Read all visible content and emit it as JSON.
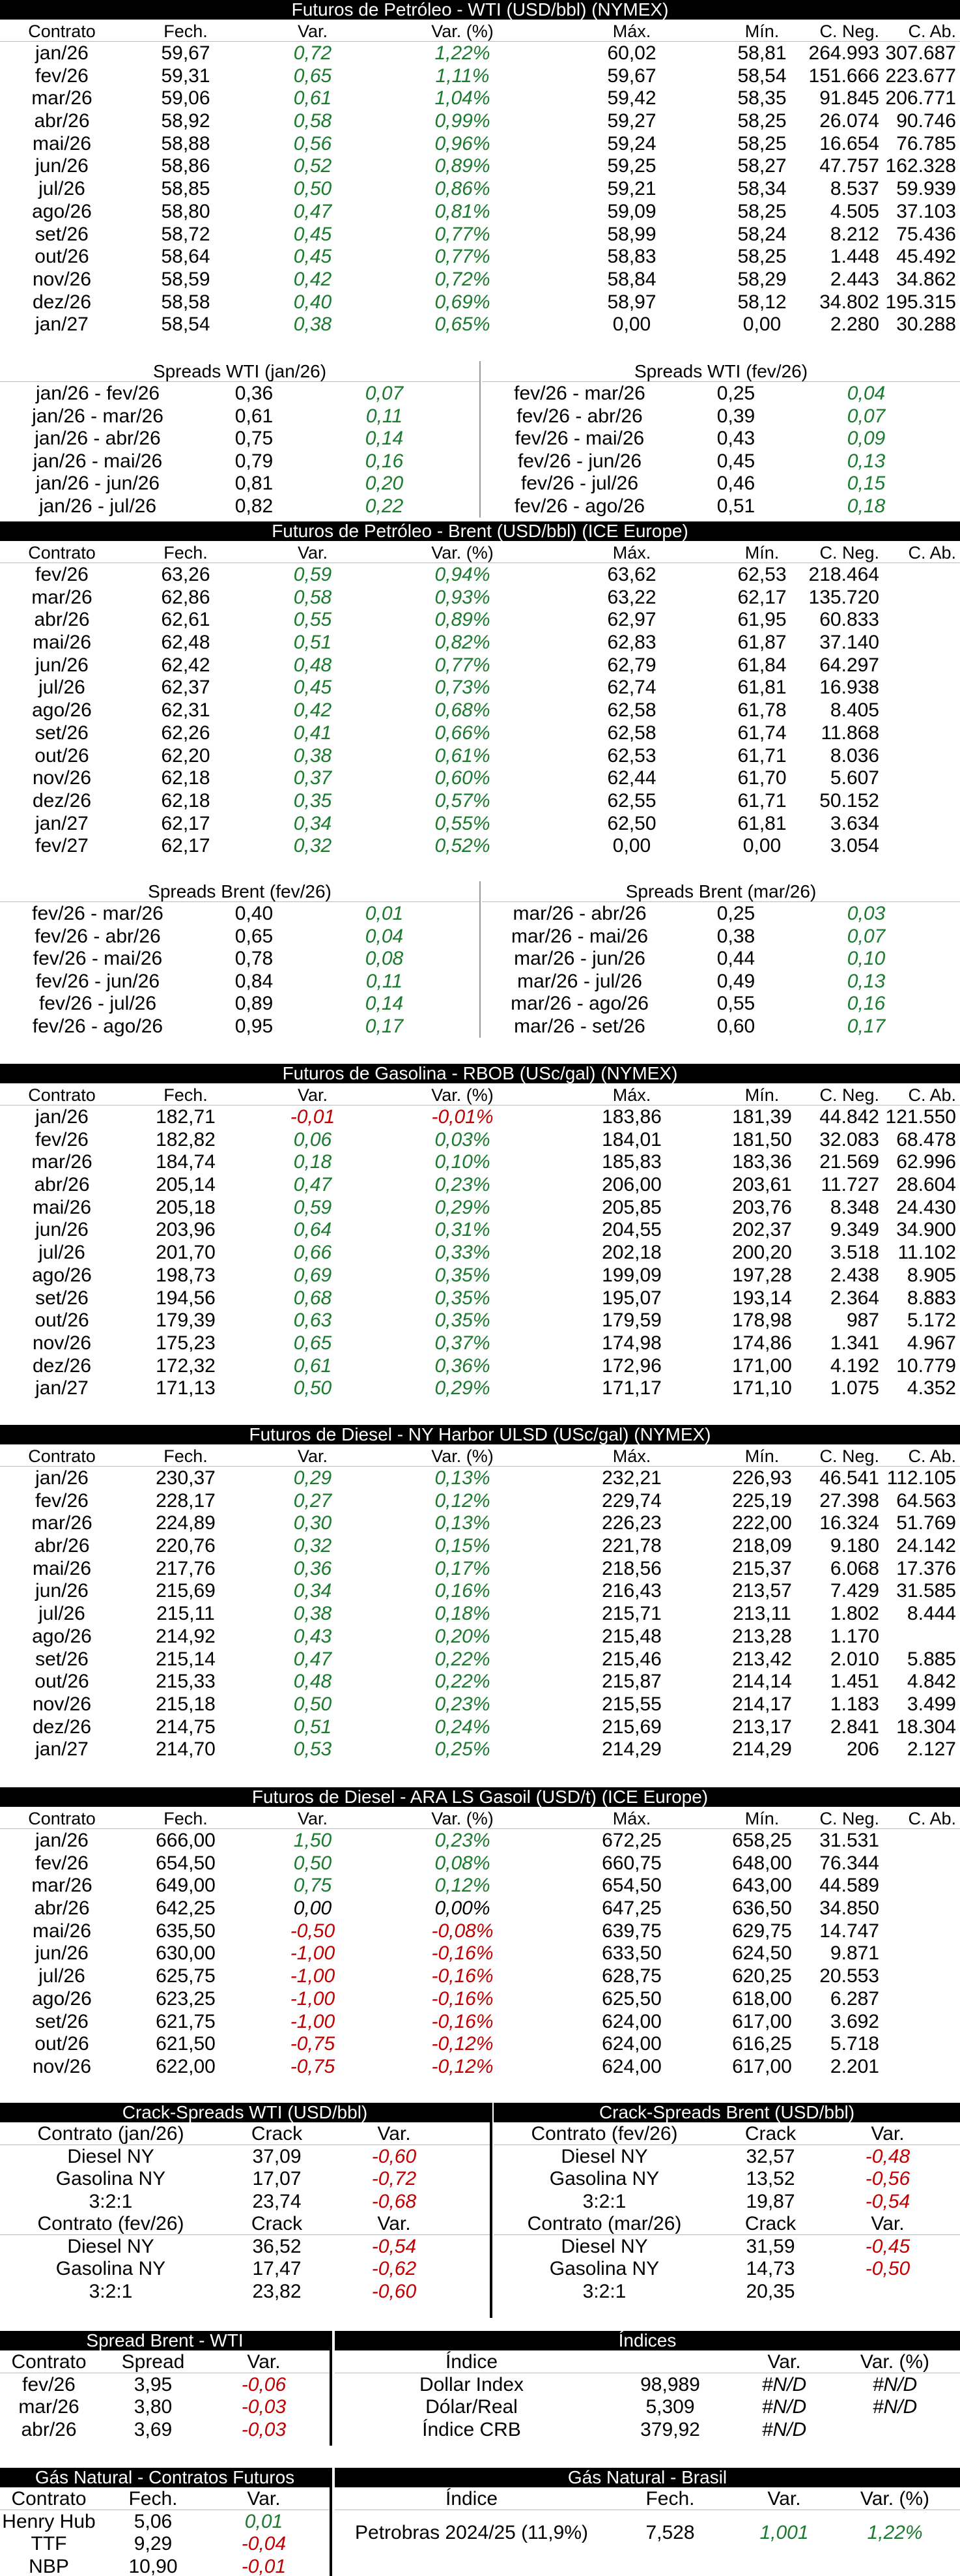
{
  "futures_headers": [
    "Contrato",
    "Fech.",
    "Var.",
    "Var. (%)",
    "Máx.",
    "Mín.",
    "C. Neg.",
    "C. Ab."
  ],
  "wti": {
    "title": "Futuros de Petróleo - WTI (USD/bbl) (NYMEX)",
    "rows": [
      [
        "jan/26",
        "59,67",
        "0,72",
        "1,22%",
        "60,02",
        "58,81",
        "264.993",
        "307.687"
      ],
      [
        "fev/26",
        "59,31",
        "0,65",
        "1,11%",
        "59,67",
        "58,54",
        "151.666",
        "223.677"
      ],
      [
        "mar/26",
        "59,06",
        "0,61",
        "1,04%",
        "59,42",
        "58,35",
        "91.845",
        "206.771"
      ],
      [
        "abr/26",
        "58,92",
        "0,58",
        "0,99%",
        "59,27",
        "58,25",
        "26.074",
        "90.746"
      ],
      [
        "mai/26",
        "58,88",
        "0,56",
        "0,96%",
        "59,24",
        "58,25",
        "16.654",
        "76.785"
      ],
      [
        "jun/26",
        "58,86",
        "0,52",
        "0,89%",
        "59,25",
        "58,27",
        "47.757",
        "162.328"
      ],
      [
        "jul/26",
        "58,85",
        "0,50",
        "0,86%",
        "59,21",
        "58,34",
        "8.537",
        "59.939"
      ],
      [
        "ago/26",
        "58,80",
        "0,47",
        "0,81%",
        "59,09",
        "58,25",
        "4.505",
        "37.103"
      ],
      [
        "set/26",
        "58,72",
        "0,45",
        "0,77%",
        "58,99",
        "58,24",
        "8.212",
        "75.436"
      ],
      [
        "out/26",
        "58,64",
        "0,45",
        "0,77%",
        "58,83",
        "58,25",
        "1.448",
        "45.492"
      ],
      [
        "nov/26",
        "58,59",
        "0,42",
        "0,72%",
        "58,84",
        "58,29",
        "2.443",
        "34.862"
      ],
      [
        "dez/26",
        "58,58",
        "0,40",
        "0,69%",
        "58,97",
        "58,12",
        "34.802",
        "195.315"
      ],
      [
        "jan/27",
        "58,54",
        "0,38",
        "0,65%",
        "0,00",
        "0,00",
        "2.280",
        "30.288"
      ]
    ],
    "spread_left_title": "Spreads WTI (jan/26)",
    "spread_right_title": "Spreads WTI (fev/26)",
    "spread_left": [
      [
        "jan/26 - fev/26",
        "0,36",
        "0,07"
      ],
      [
        "jan/26 - mar/26",
        "0,61",
        "0,11"
      ],
      [
        "jan/26 - abr/26",
        "0,75",
        "0,14"
      ],
      [
        "jan/26 - mai/26",
        "0,79",
        "0,16"
      ],
      [
        "jan/26 - jun/26",
        "0,81",
        "0,20"
      ],
      [
        "jan/26 - jul/26",
        "0,82",
        "0,22"
      ]
    ],
    "spread_right": [
      [
        "fev/26 - mar/26",
        "0,25",
        "0,04"
      ],
      [
        "fev/26 - abr/26",
        "0,39",
        "0,07"
      ],
      [
        "fev/26 - mai/26",
        "0,43",
        "0,09"
      ],
      [
        "fev/26 - jun/26",
        "0,45",
        "0,13"
      ],
      [
        "fev/26 - jul/26",
        "0,46",
        "0,15"
      ],
      [
        "fev/26 - ago/26",
        "0,51",
        "0,18"
      ]
    ]
  },
  "brent": {
    "title": "Futuros de Petróleo - Brent (USD/bbl) (ICE Europe)",
    "rows": [
      [
        "fev/26",
        "63,26",
        "0,59",
        "0,94%",
        "63,62",
        "62,53",
        "218.464",
        ""
      ],
      [
        "mar/26",
        "62,86",
        "0,58",
        "0,93%",
        "63,22",
        "62,17",
        "135.720",
        ""
      ],
      [
        "abr/26",
        "62,61",
        "0,55",
        "0,89%",
        "62,97",
        "61,95",
        "60.833",
        ""
      ],
      [
        "mai/26",
        "62,48",
        "0,51",
        "0,82%",
        "62,83",
        "61,87",
        "37.140",
        ""
      ],
      [
        "jun/26",
        "62,42",
        "0,48",
        "0,77%",
        "62,79",
        "61,84",
        "64.297",
        ""
      ],
      [
        "jul/26",
        "62,37",
        "0,45",
        "0,73%",
        "62,74",
        "61,81",
        "16.938",
        ""
      ],
      [
        "ago/26",
        "62,31",
        "0,42",
        "0,68%",
        "62,58",
        "61,78",
        "8.405",
        ""
      ],
      [
        "set/26",
        "62,26",
        "0,41",
        "0,66%",
        "62,58",
        "61,74",
        "11.868",
        ""
      ],
      [
        "out/26",
        "62,20",
        "0,38",
        "0,61%",
        "62,53",
        "61,71",
        "8.036",
        ""
      ],
      [
        "nov/26",
        "62,18",
        "0,37",
        "0,60%",
        "62,44",
        "61,70",
        "5.607",
        ""
      ],
      [
        "dez/26",
        "62,18",
        "0,35",
        "0,57%",
        "62,55",
        "61,71",
        "50.152",
        ""
      ],
      [
        "jan/27",
        "62,17",
        "0,34",
        "0,55%",
        "62,50",
        "61,81",
        "3.634",
        ""
      ],
      [
        "fev/27",
        "62,17",
        "0,32",
        "0,52%",
        "0,00",
        "0,00",
        "3.054",
        ""
      ]
    ],
    "spread_left_title": "Spreads Brent (fev/26)",
    "spread_right_title": "Spreads Brent (mar/26)",
    "spread_left": [
      [
        "fev/26 - mar/26",
        "0,40",
        "0,01"
      ],
      [
        "fev/26 - abr/26",
        "0,65",
        "0,04"
      ],
      [
        "fev/26 - mai/26",
        "0,78",
        "0,08"
      ],
      [
        "fev/26 - jun/26",
        "0,84",
        "0,11"
      ],
      [
        "fev/26 - jul/26",
        "0,89",
        "0,14"
      ],
      [
        "fev/26 - ago/26",
        "0,95",
        "0,17"
      ]
    ],
    "spread_right": [
      [
        "mar/26 - abr/26",
        "0,25",
        "0,03"
      ],
      [
        "mar/26 - mai/26",
        "0,38",
        "0,07"
      ],
      [
        "mar/26 - jun/26",
        "0,44",
        "0,10"
      ],
      [
        "mar/26 - jul/26",
        "0,49",
        "0,13"
      ],
      [
        "mar/26 - ago/26",
        "0,55",
        "0,16"
      ],
      [
        "mar/26 - set/26",
        "0,60",
        "0,17"
      ]
    ]
  },
  "rbob": {
    "title": "Futuros de Gasolina - RBOB (USc/gal) (NYMEX)",
    "rows": [
      [
        "jan/26",
        "182,71",
        "-0,01",
        "-0,01%",
        "183,86",
        "181,39",
        "44.842",
        "121.550"
      ],
      [
        "fev/26",
        "182,82",
        "0,06",
        "0,03%",
        "184,01",
        "181,50",
        "32.083",
        "68.478"
      ],
      [
        "mar/26",
        "184,74",
        "0,18",
        "0,10%",
        "185,83",
        "183,36",
        "21.569",
        "62.996"
      ],
      [
        "abr/26",
        "205,14",
        "0,47",
        "0,23%",
        "206,00",
        "203,61",
        "11.727",
        "28.604"
      ],
      [
        "mai/26",
        "205,18",
        "0,59",
        "0,29%",
        "205,85",
        "203,76",
        "8.348",
        "24.430"
      ],
      [
        "jun/26",
        "203,96",
        "0,64",
        "0,31%",
        "204,55",
        "202,37",
        "9.349",
        "34.900"
      ],
      [
        "jul/26",
        "201,70",
        "0,66",
        "0,33%",
        "202,18",
        "200,20",
        "3.518",
        "11.102"
      ],
      [
        "ago/26",
        "198,73",
        "0,69",
        "0,35%",
        "199,09",
        "197,28",
        "2.438",
        "8.905"
      ],
      [
        "set/26",
        "194,56",
        "0,68",
        "0,35%",
        "195,07",
        "193,14",
        "2.364",
        "8.883"
      ],
      [
        "out/26",
        "179,39",
        "0,63",
        "0,35%",
        "179,59",
        "178,98",
        "987",
        "5.172"
      ],
      [
        "nov/26",
        "175,23",
        "0,65",
        "0,37%",
        "174,98",
        "174,86",
        "1.341",
        "4.967"
      ],
      [
        "dez/26",
        "172,32",
        "0,61",
        "0,36%",
        "172,96",
        "171,00",
        "4.192",
        "10.779"
      ],
      [
        "jan/27",
        "171,13",
        "0,50",
        "0,29%",
        "171,17",
        "171,10",
        "1.075",
        "4.352"
      ]
    ]
  },
  "ulsd": {
    "title": "Futuros de Diesel - NY Harbor ULSD (USc/gal) (NYMEX)",
    "rows": [
      [
        "jan/26",
        "230,37",
        "0,29",
        "0,13%",
        "232,21",
        "226,93",
        "46.541",
        "112.105"
      ],
      [
        "fev/26",
        "228,17",
        "0,27",
        "0,12%",
        "229,74",
        "225,19",
        "27.398",
        "64.563"
      ],
      [
        "mar/26",
        "224,89",
        "0,30",
        "0,13%",
        "226,23",
        "222,00",
        "16.324",
        "51.769"
      ],
      [
        "abr/26",
        "220,76",
        "0,32",
        "0,15%",
        "221,78",
        "218,09",
        "9.180",
        "24.142"
      ],
      [
        "mai/26",
        "217,76",
        "0,36",
        "0,17%",
        "218,56",
        "215,37",
        "6.068",
        "17.376"
      ],
      [
        "jun/26",
        "215,69",
        "0,34",
        "0,16%",
        "216,43",
        "213,57",
        "7.429",
        "31.585"
      ],
      [
        "jul/26",
        "215,11",
        "0,38",
        "0,18%",
        "215,71",
        "213,11",
        "1.802",
        "8.444"
      ],
      [
        "ago/26",
        "214,92",
        "0,43",
        "0,20%",
        "215,48",
        "213,28",
        "1.170",
        ""
      ],
      [
        "set/26",
        "215,14",
        "0,47",
        "0,22%",
        "215,46",
        "213,42",
        "2.010",
        "5.885"
      ],
      [
        "out/26",
        "215,33",
        "0,48",
        "0,22%",
        "215,87",
        "214,14",
        "1.451",
        "4.842"
      ],
      [
        "nov/26",
        "215,18",
        "0,50",
        "0,23%",
        "215,55",
        "214,17",
        "1.183",
        "3.499"
      ],
      [
        "dez/26",
        "214,75",
        "0,51",
        "0,24%",
        "215,69",
        "213,17",
        "2.841",
        "18.304"
      ],
      [
        "jan/27",
        "214,70",
        "0,53",
        "0,25%",
        "214,29",
        "214,29",
        "206",
        "2.127"
      ]
    ]
  },
  "gasoil": {
    "title": "Futuros de Diesel - ARA LS Gasoil (USD/t) (ICE Europe)",
    "rows": [
      [
        "jan/26",
        "666,00",
        "1,50",
        "0,23%",
        "672,25",
        "658,25",
        "31.531",
        ""
      ],
      [
        "fev/26",
        "654,50",
        "0,50",
        "0,08%",
        "660,75",
        "648,00",
        "76.344",
        ""
      ],
      [
        "mar/26",
        "649,00",
        "0,75",
        "0,12%",
        "654,50",
        "643,00",
        "44.589",
        ""
      ],
      [
        "abr/26",
        "642,25",
        "0,00",
        "0,00%",
        "647,25",
        "636,50",
        "34.850",
        ""
      ],
      [
        "mai/26",
        "635,50",
        "-0,50",
        "-0,08%",
        "639,75",
        "629,75",
        "14.747",
        ""
      ],
      [
        "jun/26",
        "630,00",
        "-1,00",
        "-0,16%",
        "633,50",
        "624,50",
        "9.871",
        ""
      ],
      [
        "jul/26",
        "625,75",
        "-1,00",
        "-0,16%",
        "628,75",
        "620,25",
        "20.553",
        ""
      ],
      [
        "ago/26",
        "623,25",
        "-1,00",
        "-0,16%",
        "625,50",
        "618,00",
        "6.287",
        ""
      ],
      [
        "set/26",
        "621,75",
        "-1,00",
        "-0,16%",
        "624,00",
        "617,00",
        "3.692",
        ""
      ],
      [
        "out/26",
        "621,50",
        "-0,75",
        "-0,12%",
        "624,00",
        "616,25",
        "5.718",
        ""
      ],
      [
        "nov/26",
        "622,00",
        "-0,75",
        "-0,12%",
        "624,00",
        "617,00",
        "2.201",
        ""
      ]
    ]
  },
  "crack": {
    "wti_title": "Crack-Spreads WTI (USD/bbl)",
    "brent_title": "Crack-Spreads Brent (USD/bbl)",
    "col_crack": "Crack",
    "col_var": "Var.",
    "wti_blocks": [
      {
        "contract": "Contrato (jan/26)",
        "rows": [
          [
            "Diesel NY",
            "37,09",
            "-0,60"
          ],
          [
            "Gasolina NY",
            "17,07",
            "-0,72"
          ],
          [
            "3:2:1",
            "23,74",
            "-0,68"
          ]
        ]
      },
      {
        "contract": "Contrato (fev/26)",
        "rows": [
          [
            "Diesel NY",
            "36,52",
            "-0,54"
          ],
          [
            "Gasolina NY",
            "17,47",
            "-0,62"
          ],
          [
            "3:2:1",
            "23,82",
            "-0,60"
          ]
        ]
      }
    ],
    "brent_blocks": [
      {
        "contract": "Contrato (fev/26)",
        "rows": [
          [
            "Diesel NY",
            "32,57",
            "-0,48"
          ],
          [
            "Gasolina NY",
            "13,52",
            "-0,56"
          ],
          [
            "3:2:1",
            "19,87",
            "-0,54"
          ]
        ]
      },
      {
        "contract": "Contrato (mar/26)",
        "rows": [
          [
            "Diesel NY",
            "31,59",
            "-0,45"
          ],
          [
            "Gasolina NY",
            "14,73",
            "-0,50"
          ],
          [
            "3:2:1",
            "20,35",
            ""
          ]
        ]
      }
    ]
  },
  "spread_brent_wti": {
    "title": "Spread Brent - WTI",
    "headers": [
      "Contrato",
      "Spread",
      "Var."
    ],
    "rows": [
      [
        "fev/26",
        "3,95",
        "-0,06"
      ],
      [
        "mar/26",
        "3,80",
        "-0,03"
      ],
      [
        "abr/26",
        "3,69",
        "-0,03"
      ]
    ]
  },
  "indices": {
    "title": "Índices",
    "headers": [
      "Índice",
      "",
      "Var.",
      "Var. (%)"
    ],
    "rows": [
      [
        "Dollar Index",
        "98,989",
        "#N/D",
        "#N/D"
      ],
      [
        "Dólar/Real",
        "5,309",
        "#N/D",
        "#N/D"
      ],
      [
        "Índice CRB",
        "379,92",
        "#N/D",
        ""
      ]
    ]
  },
  "gas_futures": {
    "title": "Gás Natural - Contratos Futuros",
    "headers": [
      "Contrato",
      "Fech.",
      "Var."
    ],
    "rows": [
      [
        "Henry Hub",
        "5,06",
        "0,01"
      ],
      [
        "TTF",
        "9,29",
        "-0,04"
      ],
      [
        "NBP",
        "10,90",
        "-0,01"
      ]
    ]
  },
  "gas_brasil": {
    "title": "Gás Natural - Brasil",
    "headers": [
      "Índice",
      "Fech.",
      "Var.",
      "Var. (%)"
    ],
    "rows": [
      [
        "Petrobras 2024/25 (11,9%)",
        "7,528",
        "1,001",
        "1,22%"
      ]
    ]
  },
  "colors": {
    "positive": "#1a7a2e",
    "negative": "#c00000",
    "header_bg": "#000000"
  }
}
